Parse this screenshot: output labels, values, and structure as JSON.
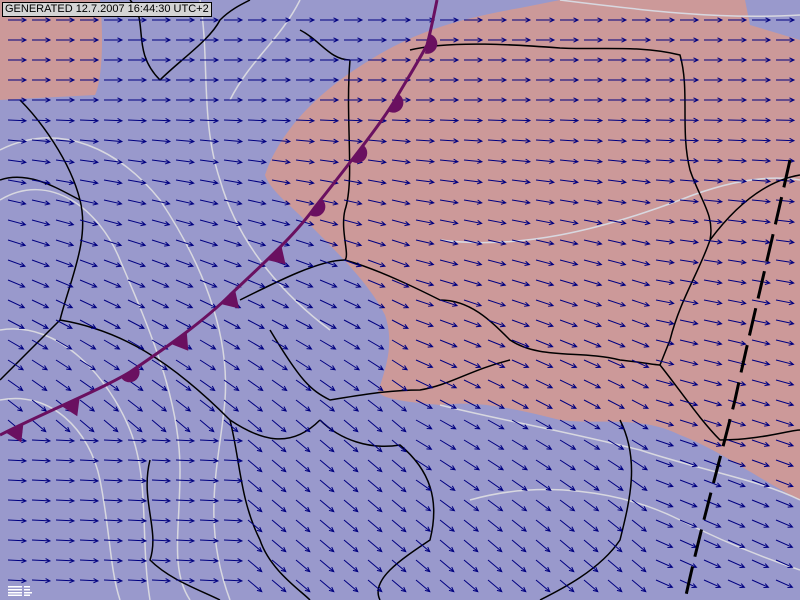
{
  "header": {
    "generated_label": "GENERATED 12.7.2007 16:44:30 UTC+2"
  },
  "colors": {
    "cold_area": "#9999cc",
    "warm_area": "#cc9999",
    "wind_arrow": "#000080",
    "front": "#6a1060",
    "border": "#000000",
    "isoline": "#d0d0d0"
  },
  "icons": {
    "legend": "legend-grid-icon"
  }
}
